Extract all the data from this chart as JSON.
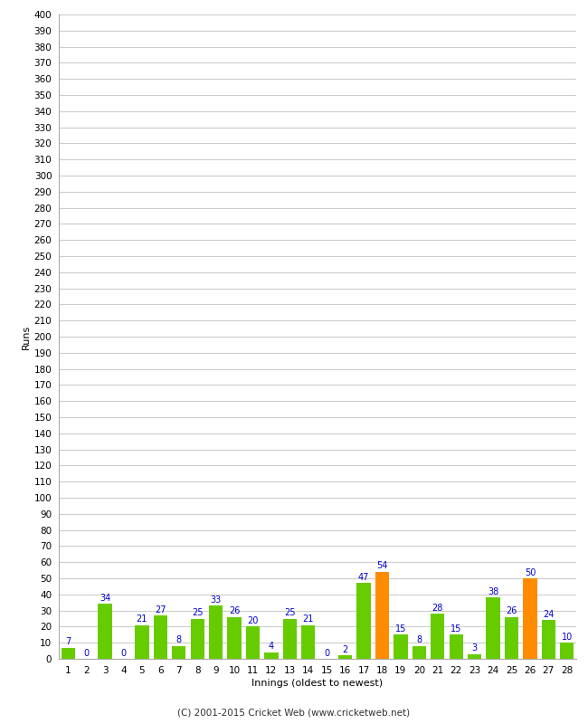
{
  "xlabel": "Innings (oldest to newest)",
  "ylabel": "Runs",
  "categories": [
    1,
    2,
    3,
    4,
    5,
    6,
    7,
    8,
    9,
    10,
    11,
    12,
    13,
    14,
    15,
    16,
    17,
    18,
    19,
    20,
    21,
    22,
    23,
    24,
    25,
    26,
    27,
    28
  ],
  "values": [
    7,
    0,
    34,
    0,
    21,
    27,
    8,
    25,
    33,
    26,
    20,
    4,
    25,
    21,
    0,
    2,
    47,
    54,
    15,
    8,
    28,
    15,
    3,
    38,
    26,
    50,
    24,
    10
  ],
  "bar_colors": [
    "#66cc00",
    "#66cc00",
    "#66cc00",
    "#66cc00",
    "#66cc00",
    "#66cc00",
    "#66cc00",
    "#66cc00",
    "#66cc00",
    "#66cc00",
    "#66cc00",
    "#66cc00",
    "#66cc00",
    "#66cc00",
    "#66cc00",
    "#66cc00",
    "#66cc00",
    "#ff8c00",
    "#66cc00",
    "#66cc00",
    "#66cc00",
    "#66cc00",
    "#66cc00",
    "#66cc00",
    "#66cc00",
    "#ff8c00",
    "#66cc00",
    "#66cc00"
  ],
  "ylim": [
    0,
    400
  ],
  "ytick_step": 10,
  "label_color": "#0000cc",
  "background_color": "#ffffff",
  "grid_color": "#cccccc",
  "footer": "(C) 2001-2015 Cricket Web (www.cricketweb.net)",
  "bar_width": 0.75,
  "label_fontsize": 7,
  "tick_fontsize": 7.5,
  "xlabel_fontsize": 8,
  "ylabel_fontsize": 8
}
